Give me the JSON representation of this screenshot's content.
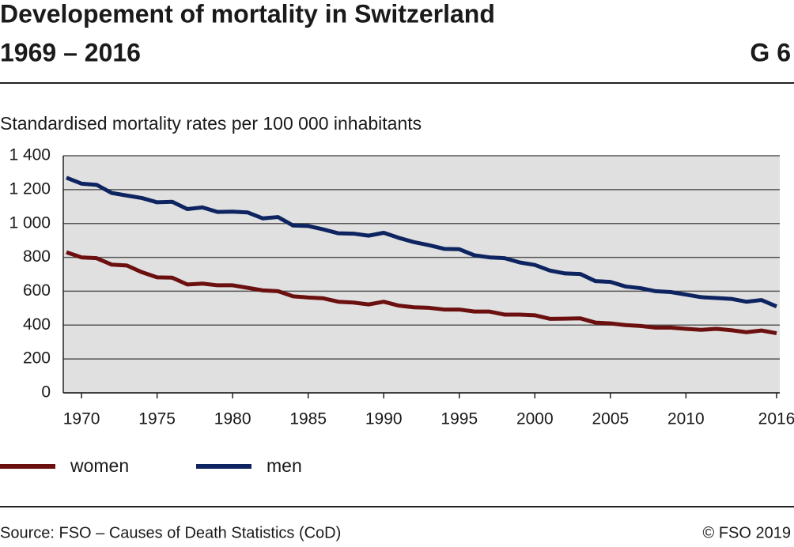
{
  "chart_data": {
    "type": "line",
    "title": [
      "Developement of mortality in Switzerland",
      "1969 – 2016"
    ],
    "chart_number": "G 6",
    "y_label": "Standardised mortality rates per 100 000 inhabitants",
    "source": "Source: FSO – Causes of Death Statistics (CoD)",
    "copyright": "© FSO 2019",
    "x": [
      1969,
      1970,
      1971,
      1972,
      1973,
      1974,
      1975,
      1976,
      1977,
      1978,
      1979,
      1980,
      1981,
      1982,
      1983,
      1984,
      1985,
      1986,
      1987,
      1988,
      1989,
      1990,
      1991,
      1992,
      1993,
      1994,
      1995,
      1996,
      1997,
      1998,
      1999,
      2000,
      2001,
      2002,
      2003,
      2004,
      2005,
      2006,
      2007,
      2008,
      2009,
      2010,
      2011,
      2012,
      2013,
      2014,
      2015,
      2016
    ],
    "series": [
      {
        "name": "women",
        "color": "#6b0f0f",
        "values": [
          830,
          800,
          795,
          757,
          752,
          712,
          682,
          680,
          640,
          645,
          635,
          635,
          620,
          605,
          600,
          570,
          563,
          558,
          538,
          533,
          522,
          538,
          515,
          505,
          502,
          492,
          492,
          480,
          480,
          462,
          462,
          458,
          437,
          438,
          440,
          415,
          410,
          400,
          395,
          385,
          385,
          378,
          372,
          378,
          370,
          358,
          368,
          352
        ]
      },
      {
        "name": "men",
        "color": "#0d2461",
        "values": [
          1270,
          1235,
          1228,
          1180,
          1165,
          1150,
          1125,
          1128,
          1085,
          1095,
          1068,
          1070,
          1065,
          1030,
          1038,
          988,
          985,
          965,
          942,
          940,
          928,
          945,
          915,
          890,
          872,
          850,
          848,
          812,
          800,
          795,
          770,
          755,
          722,
          705,
          702,
          660,
          655,
          628,
          618,
          600,
          595,
          580,
          565,
          560,
          555,
          538,
          548,
          510
        ]
      }
    ],
    "xlim": [
      1969,
      2016
    ],
    "xticks": [
      1970,
      1975,
      1980,
      1985,
      1990,
      1995,
      2000,
      2005,
      2010,
      2016
    ],
    "ylim": [
      0,
      1400
    ],
    "yticks": [
      0,
      200,
      400,
      600,
      800,
      {
        "value": 1000,
        "label": "1 000"
      },
      {
        "value": 1200,
        "label": "1 200"
      },
      {
        "value": 1400,
        "label": "1 400"
      }
    ],
    "grid": true
  }
}
